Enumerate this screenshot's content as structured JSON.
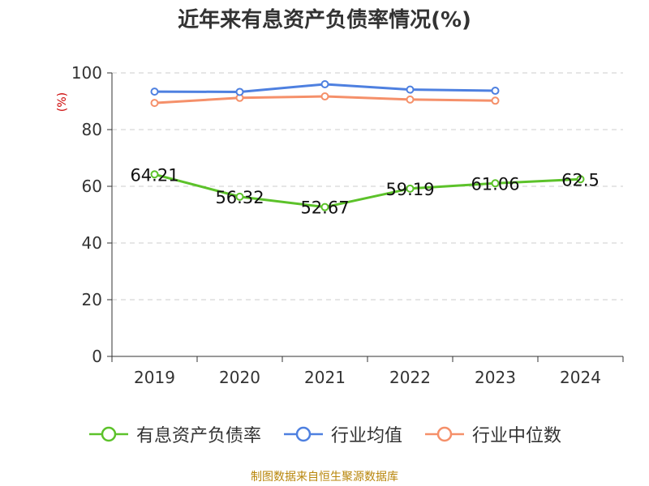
{
  "chart_data": {
    "type": "line",
    "title": "近年来有息资产负债率情况(%)",
    "ylabel": "(%)",
    "xlabel": "",
    "categories": [
      "2019",
      "2020",
      "2021",
      "2022",
      "2023",
      "2024"
    ],
    "ylim": [
      0,
      100
    ],
    "yticks": [
      0,
      20,
      40,
      60,
      80,
      100
    ],
    "grid": true,
    "legend_position": "bottom",
    "series": [
      {
        "name": "有息资产负债率",
        "color": "#5cc22a",
        "values": [
          64.21,
          56.32,
          52.67,
          59.19,
          61.06,
          62.5
        ],
        "labels": [
          "64.21",
          "56.32",
          "52.67",
          "59.19",
          "61.06",
          "62.5"
        ]
      },
      {
        "name": "行业均值",
        "color": "#4e80e0",
        "values": [
          93.4,
          93.3,
          96.0,
          94.1,
          93.7,
          null
        ]
      },
      {
        "name": "行业中位数",
        "color": "#f5906a",
        "values": [
          89.4,
          91.2,
          91.7,
          90.6,
          90.2,
          null
        ]
      }
    ]
  },
  "footer": {
    "source": "制图数据来自恒生聚源数据库"
  }
}
